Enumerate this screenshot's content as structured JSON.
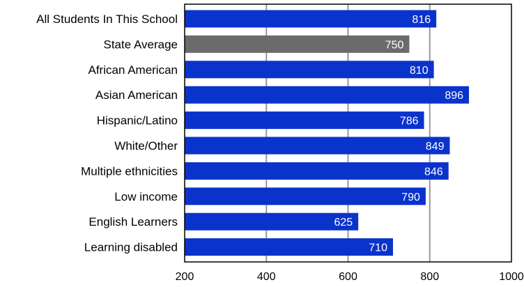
{
  "chart_data": {
    "type": "bar",
    "orientation": "horizontal",
    "categories": [
      "All Students In This School",
      "State Average",
      "African American",
      "Asian American",
      "Hispanic/Latino",
      "White/Other",
      "Multiple ethnicities",
      "Low income",
      "English Learners",
      "Learning disabled"
    ],
    "values": [
      816,
      750,
      810,
      896,
      786,
      849,
      846,
      790,
      625,
      710
    ],
    "bar_colors": [
      "#0a33cc",
      "#6b6b6b",
      "#0a33cc",
      "#0a33cc",
      "#0a33cc",
      "#0a33cc",
      "#0a33cc",
      "#0a33cc",
      "#0a33cc",
      "#0a33cc"
    ],
    "xlim": [
      200,
      1000
    ],
    "xticks": [
      200,
      400,
      600,
      800,
      1000
    ],
    "grid": "vertical",
    "grid_color": "#999999",
    "label_color": "#ffffff",
    "title": "",
    "xlabel": "",
    "ylabel": ""
  }
}
